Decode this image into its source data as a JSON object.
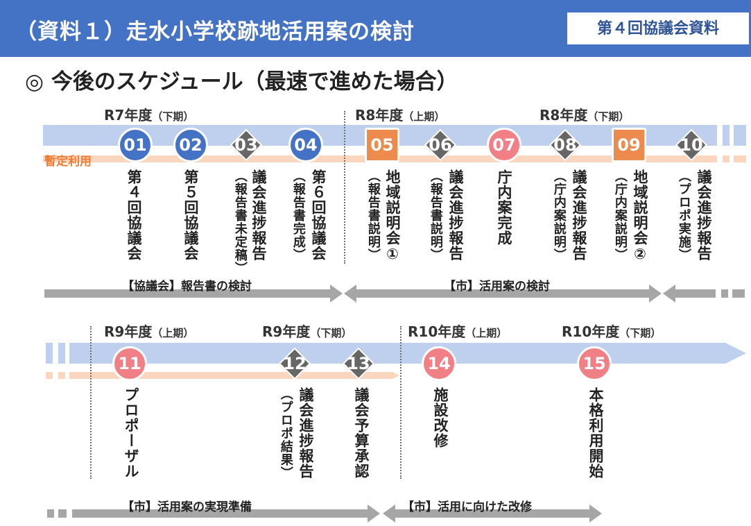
{
  "header": {
    "title": "（資料１）走水小学校跡地活用案の検討",
    "badge": "第４回協議会資料"
  },
  "subtitle": "◎ 今後のスケジュール（最速で進めた場合）",
  "interim_label": "暫定利用",
  "periods": {
    "p1": {
      "year": "R7年度",
      "half": "（下期）"
    },
    "p2": {
      "year": "R8年度",
      "half": "（上期）"
    },
    "p3": {
      "year": "R8年度",
      "half": "（下期）"
    },
    "p4": {
      "year": "R9年度",
      "half": "（上期）"
    },
    "p5": {
      "year": "R9年度",
      "half": "（下期）"
    },
    "p6": {
      "year": "R10年度",
      "half": "（上期）"
    },
    "p7": {
      "year": "R10年度",
      "half": "（下期）"
    }
  },
  "steps": [
    {
      "no": "01",
      "shape": "circle",
      "color": "#4472c4",
      "main": "第４回協議会",
      "sub": ""
    },
    {
      "no": "02",
      "shape": "circle",
      "color": "#4472c4",
      "main": "第５回協議会",
      "sub": ""
    },
    {
      "no": "03",
      "shape": "diamond",
      "color": "#666666",
      "main": "議会進捗報告",
      "sub": "（報告書未定稿）"
    },
    {
      "no": "04",
      "shape": "circle",
      "color": "#4472c4",
      "main": "第６回協議会",
      "sub": "（報告書完成）"
    },
    {
      "no": "05",
      "shape": "square",
      "color": "#ed8b4e",
      "main": "地域説明会①",
      "sub": "（報告書説明）"
    },
    {
      "no": "06",
      "shape": "diamond",
      "color": "#666666",
      "main": "議会進捗報告",
      "sub": "（報告書説明）"
    },
    {
      "no": "07",
      "shape": "circle",
      "color": "#f07f86",
      "main": "庁内案完成",
      "sub": ""
    },
    {
      "no": "08",
      "shape": "diamond",
      "color": "#666666",
      "main": "議会進捗報告",
      "sub": "（庁内案説明）"
    },
    {
      "no": "09",
      "shape": "square",
      "color": "#ed8b4e",
      "main": "地域説明会②",
      "sub": "（庁内案説明）"
    },
    {
      "no": "10",
      "shape": "diamond",
      "color": "#666666",
      "main": "議会進捗報告",
      "sub": "（プロポ実施）"
    },
    {
      "no": "11",
      "shape": "circle",
      "color": "#f07f86",
      "main": "プロポーザル",
      "sub": ""
    },
    {
      "no": "12",
      "shape": "diamond",
      "color": "#666666",
      "main": "議会進捗報告",
      "sub": "（プロポ結果）"
    },
    {
      "no": "13",
      "shape": "diamond",
      "color": "#666666",
      "main": "議会予算承認",
      "sub": ""
    },
    {
      "no": "14",
      "shape": "circle",
      "color": "#f07f86",
      "main": "施設改修",
      "sub": ""
    },
    {
      "no": "15",
      "shape": "circle",
      "color": "#f07f86",
      "main": "本格利用開始",
      "sub": ""
    }
  ],
  "phases": {
    "a": "【協議会】報告書の検討",
    "b": "【市】活用案の検討",
    "c": "【市】活用案の実現準備",
    "d": "【市】活用に向けた改修"
  },
  "colors": {
    "header": "#4472c4",
    "band": "#bfd0ee",
    "peach": "#fbd6bf",
    "interim": "#ed7d31",
    "arrow": "#a6a6a6"
  }
}
